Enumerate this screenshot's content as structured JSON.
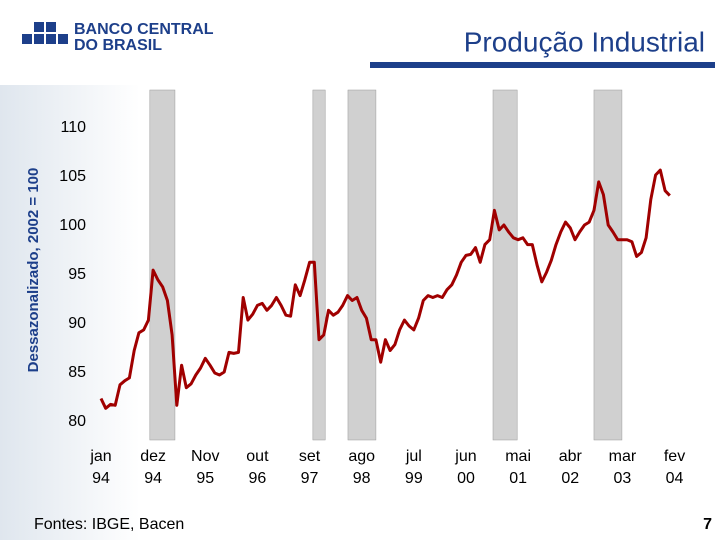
{
  "chart_data": {
    "type": "line",
    "logo": [
      "BANCO CENTRAL",
      "DO BRASIL"
    ],
    "title": "Produção Industrial",
    "y_label": "Dessazonalizado, 2002 = 100",
    "source": "Fontes: IBGE, Bacen",
    "page_number": "7",
    "color": "#a00000",
    "band_color": "#d0d0d0",
    "categories": [
      "jan 94",
      null,
      null,
      null,
      null,
      null,
      null,
      null,
      null,
      null,
      null,
      "dez 94",
      null,
      null,
      null,
      null,
      null,
      null,
      null,
      null,
      null,
      null,
      "Nov 95",
      null,
      null,
      null,
      null,
      null,
      null,
      null,
      null,
      null,
      null,
      "out 96",
      null,
      null,
      null,
      null,
      null,
      null,
      null,
      null,
      null,
      null,
      "set 97",
      null,
      null,
      null,
      null,
      null,
      null,
      null,
      null,
      null,
      null,
      "ago 98",
      null,
      null,
      null,
      null,
      null,
      null,
      null,
      null,
      null,
      null,
      "jul 99",
      null,
      null,
      null,
      null,
      null,
      null,
      null,
      null,
      null,
      null,
      "jun 00",
      null,
      null,
      null,
      null,
      null,
      null,
      null,
      null,
      null,
      null,
      "mai 01",
      null,
      null,
      null,
      null,
      null,
      null,
      null,
      null,
      null,
      null,
      "abr 02",
      null,
      null,
      null,
      null,
      null,
      null,
      null,
      null,
      null,
      null,
      "mar 03",
      null,
      null,
      null,
      null,
      null,
      null,
      null,
      null,
      null,
      null,
      "fev 04"
    ],
    "values": [
      82.4,
      81.4,
      81.8,
      81.7,
      83.8,
      84.2,
      84.5,
      87.3,
      89.1,
      89.4,
      90.4,
      95.5,
      94.5,
      93.8,
      92.4,
      88.9,
      81.7,
      85.8,
      83.5,
      83.9,
      84.8,
      85.5,
      86.5,
      85.8,
      85.0,
      84.8,
      85.1,
      87.1,
      87.0,
      87.1,
      92.7,
      90.4,
      91.0,
      91.9,
      92.1,
      91.4,
      91.9,
      92.7,
      91.9,
      90.9,
      90.8,
      94.0,
      92.9,
      94.5,
      96.3,
      96.3,
      88.4,
      88.9,
      91.4,
      90.9,
      91.2,
      91.9,
      92.9,
      92.4,
      92.7,
      91.4,
      90.6,
      88.4,
      88.4,
      86.1,
      88.4,
      87.3,
      87.9,
      89.4,
      90.4,
      89.8,
      89.4,
      90.6,
      92.4,
      92.9,
      92.7,
      92.9,
      92.7,
      93.5,
      94.0,
      95.0,
      96.3,
      97.0,
      97.1,
      97.8,
      96.3,
      98.1,
      98.6,
      101.6,
      99.6,
      100.1,
      99.4,
      98.8,
      98.6,
      98.8,
      98.1,
      98.1,
      96.0,
      94.3,
      95.3,
      96.5,
      98.1,
      99.4,
      100.4,
      99.8,
      98.6,
      99.4,
      100.1,
      100.4,
      101.6,
      104.5,
      103.2,
      100.1,
      99.4,
      98.6,
      98.6,
      98.6,
      98.4,
      96.9,
      97.3,
      98.8,
      102.7,
      105.2,
      105.7,
      103.6,
      103.1,
      null
    ],
    "shaded_periods": [
      [
        10.3,
        15.6
      ],
      [
        44.7,
        47.3
      ],
      [
        52.1,
        58.0
      ],
      [
        82.7,
        87.8
      ],
      [
        104.0,
        109.9
      ]
    ],
    "ylim": [
      80,
      110
    ],
    "yticks": [
      80,
      85,
      90,
      95,
      100,
      105,
      110
    ]
  }
}
